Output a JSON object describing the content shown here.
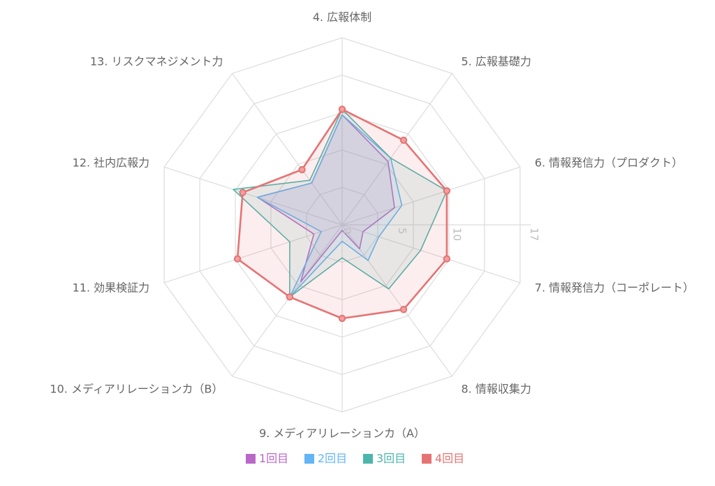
{
  "chart_data": {
    "type": "radar",
    "axes": [
      "4. 広報体制",
      "5. 広報基礎力",
      "6. 情報発信力（プロダクト）",
      "7. 情報発信力（コーポレート）",
      "8. 情報収集力",
      "9. メディアリレーションカ（A）",
      "10. メディアリレーションカ（B）",
      "11. 効果検証力",
      "12. 社内広報力",
      "13. リスクマネジメント力"
    ],
    "r_ticks": [
      "0",
      "5",
      "10",
      "17"
    ],
    "r_tick_values": [
      0,
      5,
      10,
      17
    ],
    "r_range": [
      0,
      17
    ],
    "grid_rings": [
      0,
      3.4,
      6.8,
      10.2,
      13.6,
      17
    ],
    "series": [
      {
        "name": "1回目",
        "color": "#ba68c8",
        "fill": "rgba(186,104,200,0.12)",
        "values": [
          10.0,
          7.1,
          5.0,
          2.0,
          2.7,
          0.5,
          6.4,
          2.7,
          8.1,
          4.7
        ],
        "markers": false
      },
      {
        "name": "2回目",
        "color": "#64b5f6",
        "fill": "rgba(100,181,246,0.12)",
        "values": [
          10.0,
          7.5,
          5.7,
          3.5,
          4.0,
          1.5,
          8.1,
          2.0,
          8.1,
          4.7
        ],
        "markers": false
      },
      {
        "name": "3回目",
        "color": "#4db6ac",
        "fill": "rgba(77,182,172,0.12)",
        "values": [
          10.5,
          7.5,
          10.0,
          7.5,
          7.2,
          3.0,
          8.1,
          5.0,
          10.4,
          5.0
        ],
        "markers": false
      },
      {
        "name": "4回目",
        "color": "#e57373",
        "fill": "rgba(229,115,115,0.12)",
        "values": [
          10.5,
          9.5,
          10.0,
          10.0,
          9.5,
          8.5,
          8.1,
          10.0,
          9.5,
          6.2
        ],
        "markers": true
      }
    ],
    "legend_position": "bottom"
  }
}
